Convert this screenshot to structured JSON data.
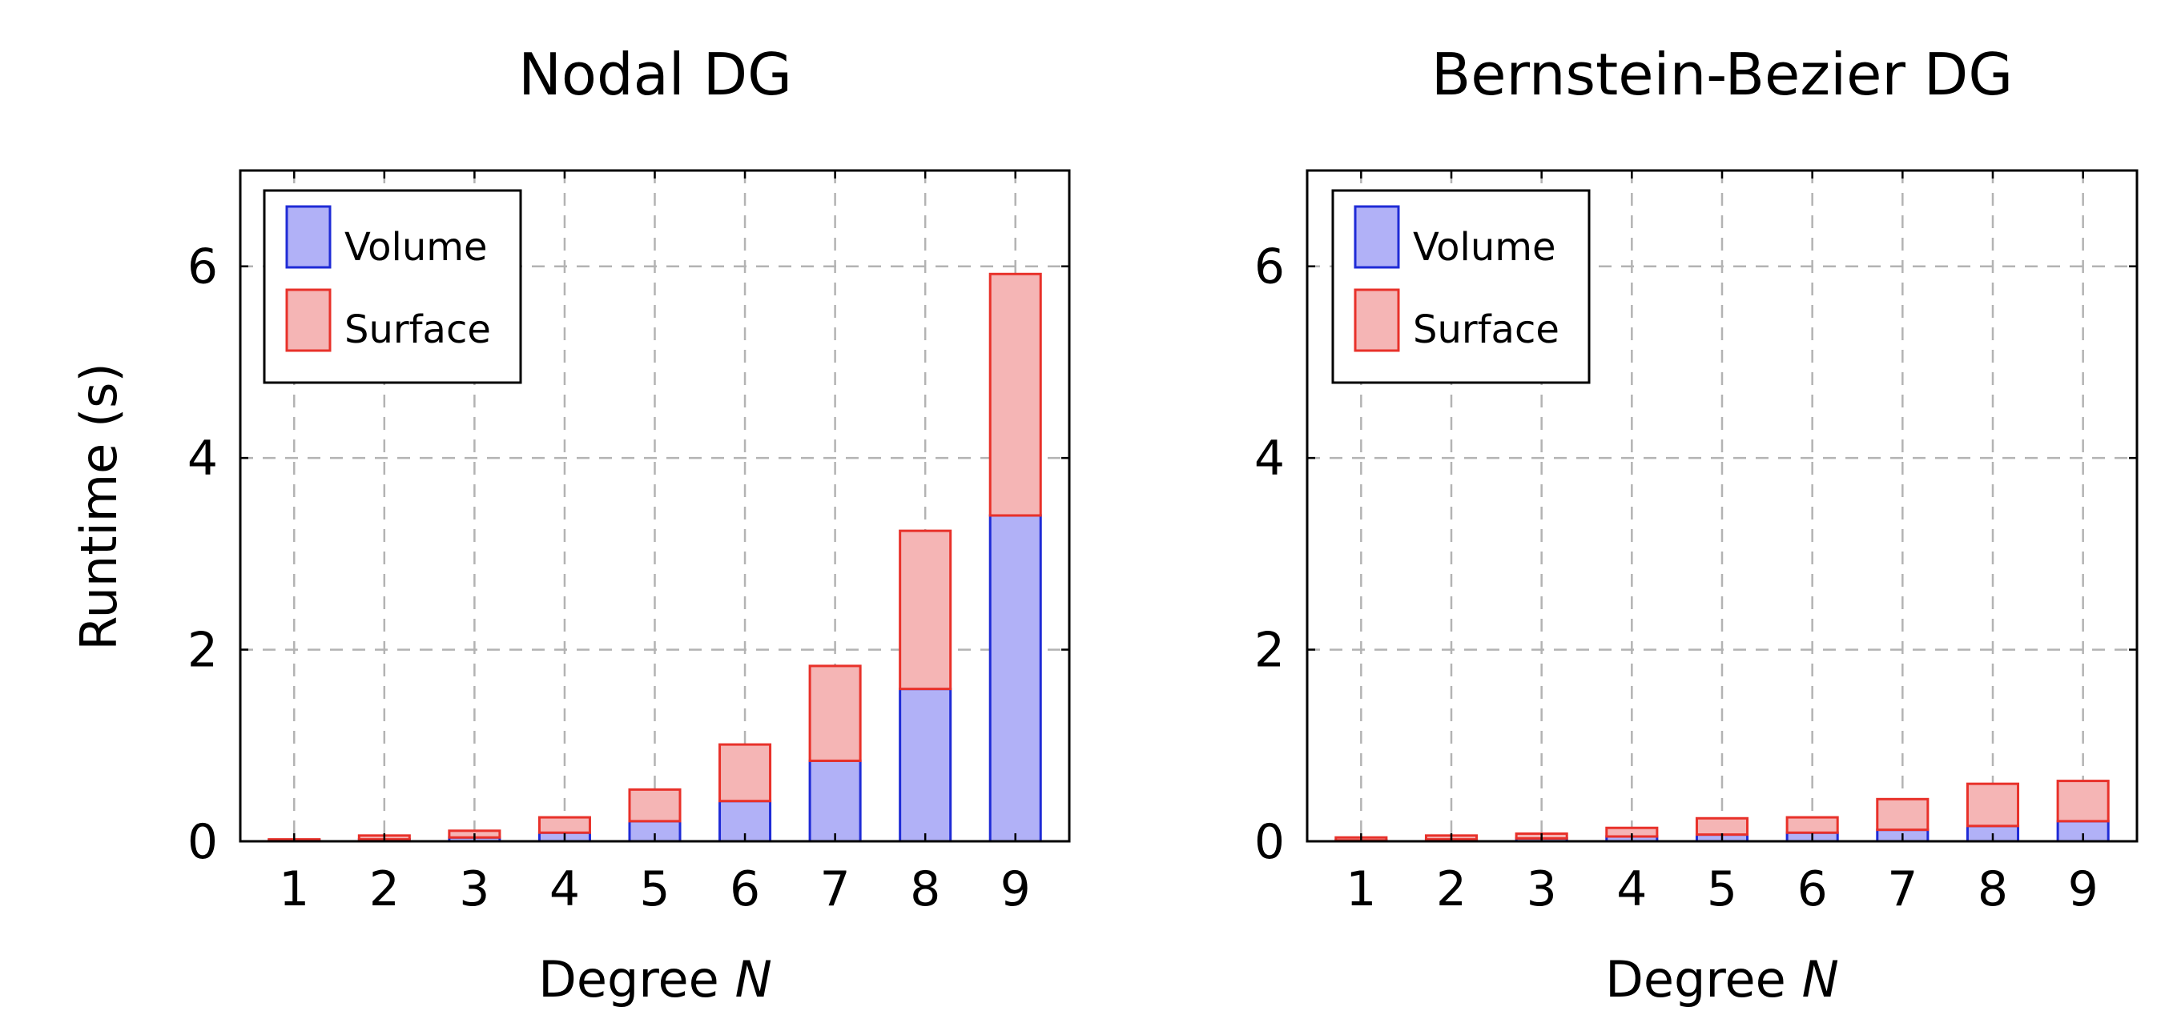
{
  "colors": {
    "volume_fill": "#b1b1f7",
    "volume_stroke": "#1f2bd6",
    "surface_fill": "#f5b5b5",
    "surface_stroke": "#e8312a",
    "grid": "#b3b3b3",
    "axis": "#000000"
  },
  "chart_data": [
    {
      "type": "bar",
      "stacked": true,
      "title": "Nodal DG",
      "xlabel": "Degree N",
      "ylabel": "Runtime (s)",
      "categories": [
        "1",
        "2",
        "3",
        "4",
        "5",
        "6",
        "7",
        "8",
        "9"
      ],
      "yticks": [
        "0",
        "2",
        "4",
        "6"
      ],
      "ylim": [
        0,
        7
      ],
      "grid": true,
      "legend_position": "top-left",
      "series": [
        {
          "name": "Volume",
          "values": [
            0.01,
            0.02,
            0.04,
            0.09,
            0.21,
            0.42,
            0.84,
            1.59,
            3.4
          ]
        },
        {
          "name": "Surface",
          "values": [
            0.01,
            0.04,
            0.07,
            0.16,
            0.33,
            0.59,
            0.99,
            1.65,
            2.52
          ]
        }
      ]
    },
    {
      "type": "bar",
      "stacked": true,
      "title": "Bernstein-Bezier DG",
      "xlabel": "Degree N",
      "ylabel": "",
      "categories": [
        "1",
        "2",
        "3",
        "4",
        "5",
        "6",
        "7",
        "8",
        "9"
      ],
      "yticks": [
        "0",
        "2",
        "4",
        "6"
      ],
      "ylim": [
        0,
        7
      ],
      "grid": true,
      "legend_position": "top-left",
      "series": [
        {
          "name": "Volume",
          "values": [
            0.01,
            0.02,
            0.03,
            0.05,
            0.07,
            0.09,
            0.12,
            0.16,
            0.21
          ]
        },
        {
          "name": "Surface",
          "values": [
            0.03,
            0.04,
            0.05,
            0.09,
            0.17,
            0.16,
            0.32,
            0.44,
            0.42
          ]
        }
      ]
    }
  ]
}
